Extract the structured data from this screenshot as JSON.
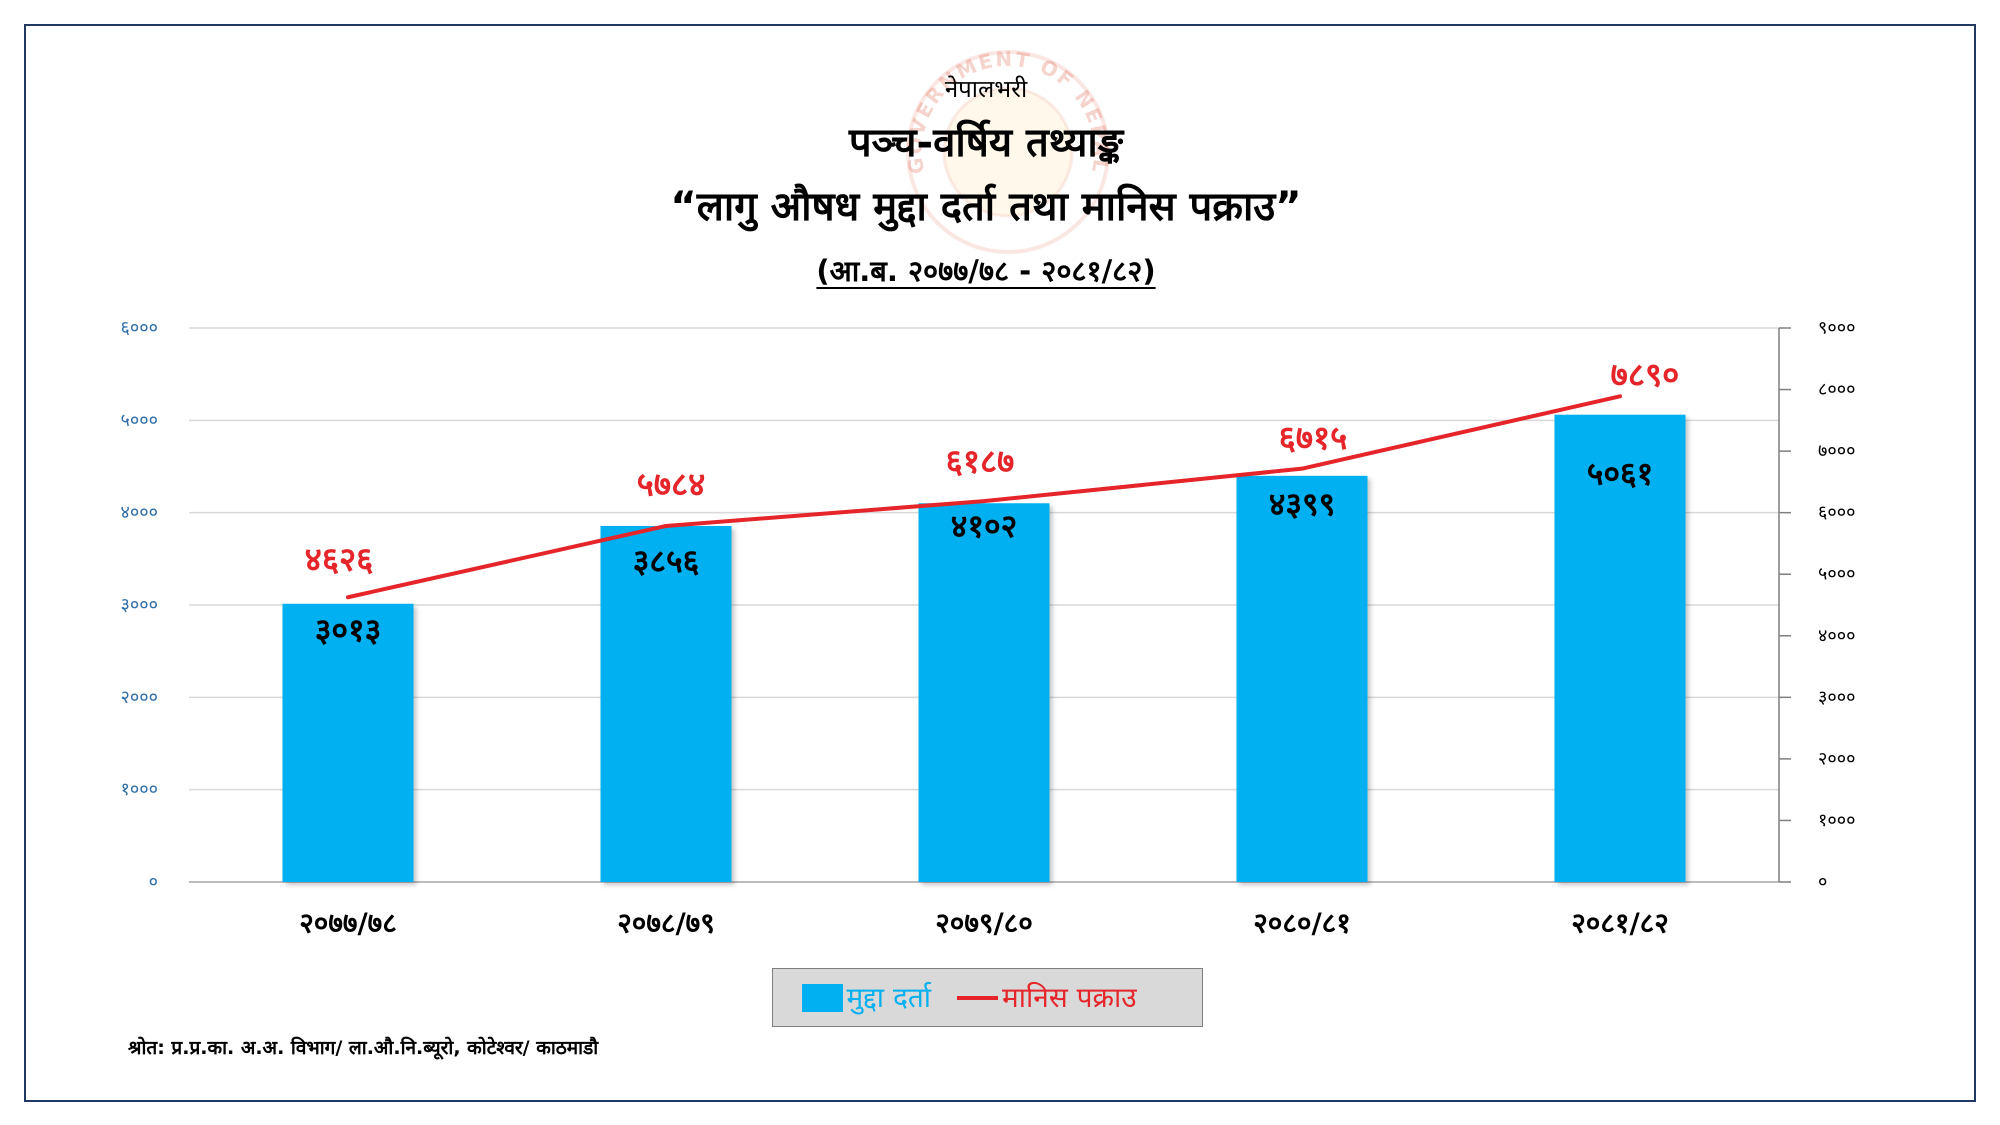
{
  "watermark": {
    "text": "GOVERNMENT OF NEPAL"
  },
  "colors": {
    "bar": "#00b0f0",
    "line": "#e5252a",
    "left_axis_text": "#2f6ea8",
    "right_axis_text": "#000000",
    "grid": "#d9d9d9",
    "axis": "#a6a6a6",
    "frame": "#1f3864",
    "legend_bg": "#d9d9d9",
    "legend_border": "#7f7f7f"
  },
  "chart_data": {
    "type": "bar",
    "supertitle": "नेपालभरी",
    "title": "पञ्च-वर्षिय तथ्याङ्क",
    "subtitle": "“लागु औषध मुद्दा दर्ता तथा मानिस पक्राउ”",
    "period": "(आ.ब. २०७७/७८ - २०८१/८२)",
    "categories": [
      "२०७७/७८",
      "२०७८/७९",
      "२०७९/८०",
      "२०८०/८१",
      "२०८१/८२"
    ],
    "series": [
      {
        "name": "मुद्दा दर्ता",
        "type": "bar",
        "axis": "left",
        "values": [
          3013,
          3856,
          4102,
          4399,
          5061
        ],
        "labels": [
          "३०१३",
          "३८५६",
          "४१०२",
          "४३९९",
          "५०६१"
        ]
      },
      {
        "name": "मानिस पक्राउ",
        "type": "line",
        "axis": "right",
        "values": [
          4626,
          5784,
          6187,
          6715,
          7890
        ],
        "labels": [
          "४६२६",
          "५७८४",
          "६१८७",
          "६७१५",
          "७८९०"
        ]
      }
    ],
    "y_left": {
      "range": [
        0,
        6000
      ],
      "ticks": [
        0,
        1000,
        2000,
        3000,
        4000,
        5000,
        6000
      ],
      "tick_labels": [
        "०",
        "१०००",
        "२०००",
        "३०००",
        "४०००",
        "५०००",
        "६०००"
      ]
    },
    "y_right": {
      "range": [
        0,
        9000
      ],
      "ticks": [
        0,
        1000,
        2000,
        3000,
        4000,
        5000,
        6000,
        7000,
        8000,
        9000
      ],
      "tick_labels": [
        "०",
        "१०००",
        "२०००",
        "३०००",
        "४०००",
        "५०००",
        "६०००",
        "७०००",
        "८०००",
        "९०००"
      ]
    },
    "grid": true,
    "legend": {
      "placement": "bottom"
    },
    "source": "श्रोत: प्र.प्र.का. अ.अ. विभाग/ ला.औ.नि.ब्यूरो, कोटेश्वर/ काठमाडौ"
  }
}
